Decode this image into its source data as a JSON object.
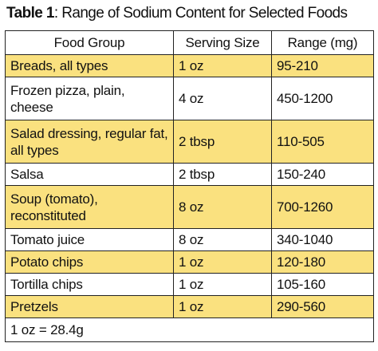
{
  "title": {
    "label": "Table 1",
    "text": ": Range of Sodium Content for Selected Foods"
  },
  "table": {
    "header": [
      "Food Group",
      "Serving Size",
      "Range (mg)"
    ],
    "rows": [
      [
        "Breads, all types",
        "1 oz",
        "95-210"
      ],
      [
        "Frozen pizza, plain, cheese",
        "4 oz",
        "450-1200"
      ],
      [
        "Salad dressing, regular fat, all types",
        "2 tbsp",
        "110-505"
      ],
      [
        "Salsa",
        "2 tbsp",
        "150-240"
      ],
      [
        "Soup (tomato), reconstituted",
        "8 oz",
        "700-1260"
      ],
      [
        "Tomato juice",
        "8 oz",
        "340-1040"
      ],
      [
        "Potato chips",
        "1 oz",
        "120-180"
      ],
      [
        "Tortilla chips",
        "1 oz",
        "105-160"
      ],
      [
        "Pretzels",
        "1 oz",
        "290-560"
      ]
    ],
    "footnote": "1 oz = 28.4g"
  }
}
